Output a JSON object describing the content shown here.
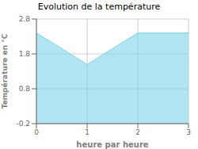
{
  "chart_data": {
    "type": "area",
    "title": "Evolution de la température",
    "xlabel": "heure par heure",
    "ylabel": "Température en °C",
    "x": [
      0,
      1,
      2,
      3
    ],
    "values": [
      2.4,
      1.5,
      2.4,
      2.4
    ],
    "xlim": [
      0,
      3
    ],
    "ylim": [
      -0.2,
      2.8
    ],
    "xticks": [
      0,
      1,
      2,
      3
    ],
    "yticks": [
      -0.2,
      0.8,
      1.8,
      2.8
    ],
    "color": "#7dd4e8",
    "grid": true
  }
}
